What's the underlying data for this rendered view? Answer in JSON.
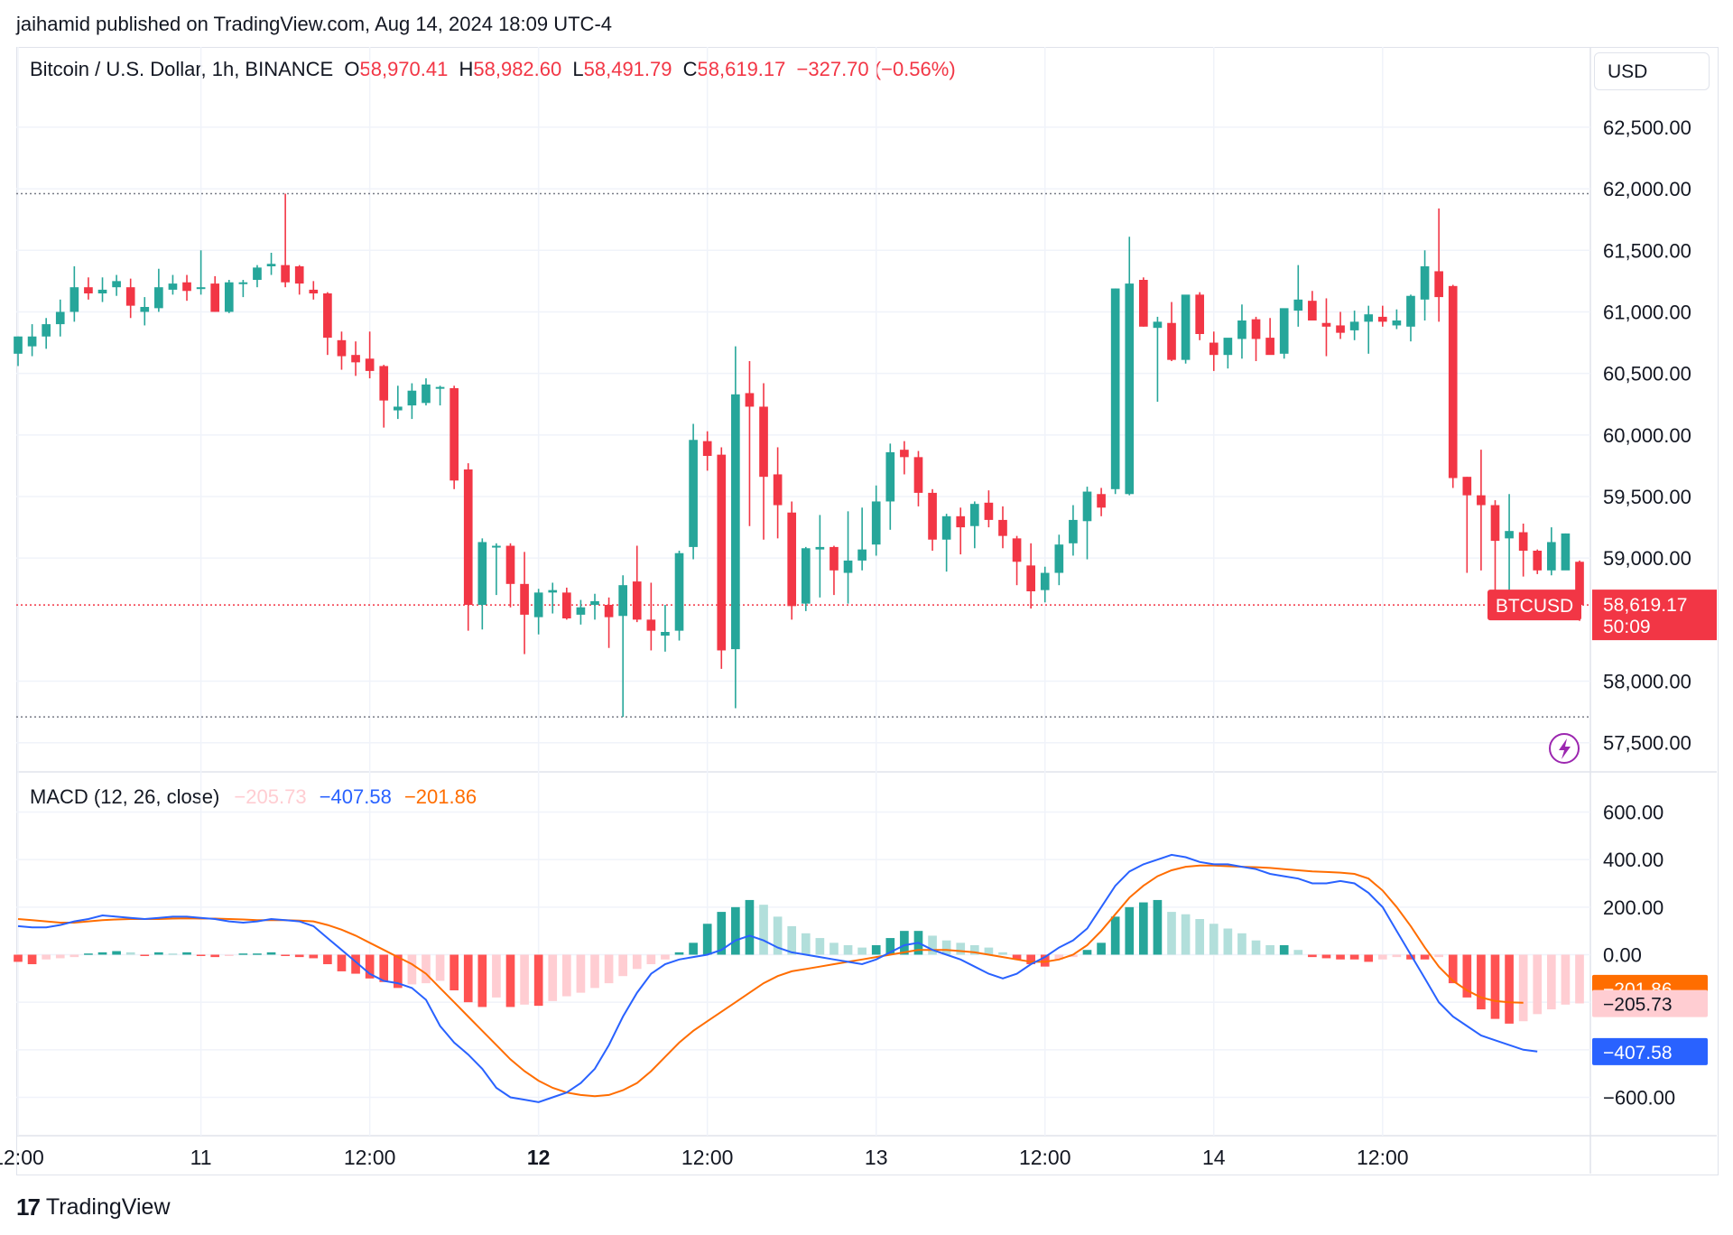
{
  "header": {
    "publisher": "jaihamid published on TradingView.com, Aug 14, 2024 18:09 UTC-4"
  },
  "legend": {
    "symbol": "Bitcoin / U.S. Dollar, 1h, BINANCE",
    "o_label": "O",
    "o_value": "58,970.41",
    "h_label": "H",
    "h_value": "58,982.60",
    "l_label": "L",
    "l_value": "58,491.79",
    "c_label": "C",
    "c_value": "58,619.17",
    "change": "−327.70 (−0.56%)"
  },
  "currency_button": "USD",
  "price_tag": {
    "symbol": "BTCUSD",
    "price": "58,619.17",
    "countdown": "50:09"
  },
  "macd_legend": {
    "name": "MACD (12, 26, close)",
    "hist": "−205.73",
    "macd": "−407.58",
    "signal": "−201.86"
  },
  "macd_tags": {
    "signal": "−201.86",
    "hist": "−205.73",
    "macd": "−407.58"
  },
  "footer": {
    "brand": "TradingView",
    "logo_glyph": "17"
  },
  "colors": {
    "up": "#26a69a",
    "down": "#f23645",
    "hist_up_strong": "#26a69a",
    "hist_up_weak": "#b2dfdb",
    "hist_down_strong": "#ff5252",
    "hist_down_weak": "#ffcdd2",
    "macd_line": "#2962ff",
    "signal_line": "#ff6d00",
    "price_line": "#f23645",
    "grid": "#f0f3fa"
  },
  "chart_data": [
    {
      "type": "candlestick",
      "title": "Bitcoin / U.S. Dollar, 1h, BINANCE",
      "ylim": [
        57300,
        62800
      ],
      "y_ticks": [
        "62,500.00",
        "62,000.00",
        "61,500.00",
        "61,000.00",
        "60,500.00",
        "60,000.00",
        "59,500.00",
        "59,000.00",
        "58,000.00",
        "57,500.00"
      ],
      "y_tick_values": [
        62500,
        62000,
        61500,
        61000,
        60500,
        60000,
        59500,
        59000,
        58000,
        57500
      ],
      "x_ticks": [
        {
          "label": "12:00",
          "index": 1,
          "bold": false
        },
        {
          "label": "11",
          "index": 13,
          "bold": false
        },
        {
          "label": "12:00",
          "index": 25,
          "bold": false
        },
        {
          "label": "12",
          "index": 37,
          "bold": true
        },
        {
          "label": "12:00",
          "index": 49,
          "bold": false
        },
        {
          "label": "13",
          "index": 61,
          "bold": false
        },
        {
          "label": "12:00",
          "index": 73,
          "bold": false
        },
        {
          "label": "14",
          "index": 85,
          "bold": false
        },
        {
          "label": "12:00",
          "index": 97,
          "bold": false
        }
      ],
      "period_high": 61960,
      "period_low": 57710,
      "last_price": 58619.17,
      "ohlc": [
        [
          60660,
          60800,
          60560,
          60800
        ],
        [
          60720,
          60900,
          60640,
          60800
        ],
        [
          60800,
          60950,
          60700,
          60900
        ],
        [
          60900,
          61100,
          60800,
          61000
        ],
        [
          61000,
          61370,
          60920,
          61200
        ],
        [
          61200,
          61280,
          61100,
          61150
        ],
        [
          61150,
          61280,
          61080,
          61180
        ],
        [
          61200,
          61300,
          61130,
          61250
        ],
        [
          61200,
          61270,
          60950,
          61050
        ],
        [
          61000,
          61120,
          60890,
          61040
        ],
        [
          61030,
          61350,
          61000,
          61200
        ],
        [
          61180,
          61300,
          61140,
          61230
        ],
        [
          61240,
          61300,
          61090,
          61170
        ],
        [
          61190,
          61500,
          61140,
          61200
        ],
        [
          61230,
          61290,
          61000,
          61000
        ],
        [
          61000,
          61260,
          60990,
          61240
        ],
        [
          61230,
          61260,
          61120,
          61240
        ],
        [
          61260,
          61380,
          61200,
          61360
        ],
        [
          61370,
          61480,
          61300,
          61390
        ],
        [
          61380,
          61960,
          61200,
          61240
        ],
        [
          61370,
          61380,
          61140,
          61230
        ],
        [
          61180,
          61250,
          61100,
          61150
        ],
        [
          61150,
          61160,
          60650,
          60790
        ],
        [
          60770,
          60840,
          60530,
          60640
        ],
        [
          60650,
          60760,
          60480,
          60590
        ],
        [
          60620,
          60840,
          60460,
          60520
        ],
        [
          60560,
          60570,
          60060,
          60280
        ],
        [
          60200,
          60400,
          60130,
          60230
        ],
        [
          60240,
          60420,
          60130,
          60360
        ],
        [
          60260,
          60460,
          60240,
          60410
        ],
        [
          60380,
          60400,
          60240,
          60390
        ],
        [
          60380,
          60400,
          59560,
          59630
        ],
        [
          59720,
          59770,
          58410,
          58620
        ],
        [
          58620,
          59160,
          58420,
          59130
        ],
        [
          59100,
          59120,
          58700,
          59100
        ],
        [
          59100,
          59120,
          58600,
          58790
        ],
        [
          58790,
          59050,
          58220,
          58540
        ],
        [
          58520,
          58750,
          58380,
          58720
        ],
        [
          58720,
          58800,
          58550,
          58740
        ],
        [
          58720,
          58760,
          58500,
          58510
        ],
        [
          58540,
          58660,
          58460,
          58600
        ],
        [
          58620,
          58710,
          58500,
          58650
        ],
        [
          58620,
          58680,
          58270,
          58520
        ],
        [
          58530,
          58860,
          57710,
          58780
        ],
        [
          58810,
          59100,
          58480,
          58500
        ],
        [
          58500,
          58800,
          58250,
          58410
        ],
        [
          58370,
          58620,
          58240,
          58400
        ],
        [
          58410,
          59060,
          58330,
          59040
        ],
        [
          59090,
          60090,
          58990,
          59960
        ],
        [
          59950,
          60030,
          59710,
          59830
        ],
        [
          59840,
          59900,
          58100,
          58250
        ],
        [
          58260,
          60720,
          57780,
          60330
        ],
        [
          60340,
          60600,
          59260,
          60230
        ],
        [
          60230,
          60420,
          59150,
          59660
        ],
        [
          59680,
          59900,
          59160,
          59430
        ],
        [
          59370,
          59460,
          58500,
          58610
        ],
        [
          58630,
          59090,
          58570,
          59080
        ],
        [
          59070,
          59350,
          58680,
          59090
        ],
        [
          59090,
          59100,
          58700,
          58900
        ],
        [
          58880,
          59380,
          58630,
          58980
        ],
        [
          58980,
          59410,
          58900,
          59070
        ],
        [
          59110,
          59590,
          59020,
          59460
        ],
        [
          59460,
          59930,
          59230,
          59860
        ],
        [
          59880,
          59950,
          59680,
          59820
        ],
        [
          59820,
          59870,
          59420,
          59530
        ],
        [
          59530,
          59560,
          59060,
          59150
        ],
        [
          59150,
          59360,
          58890,
          59340
        ],
        [
          59340,
          59410,
          59030,
          59250
        ],
        [
          59260,
          59460,
          59080,
          59440
        ],
        [
          59450,
          59550,
          59250,
          59310
        ],
        [
          59310,
          59420,
          59080,
          59180
        ],
        [
          59160,
          59180,
          58780,
          58970
        ],
        [
          58940,
          59120,
          58590,
          58730
        ],
        [
          58740,
          58930,
          58640,
          58880
        ],
        [
          58880,
          59190,
          58780,
          59110
        ],
        [
          59120,
          59430,
          59020,
          59310
        ],
        [
          59300,
          59580,
          58990,
          59540
        ],
        [
          59520,
          59570,
          59340,
          59410
        ],
        [
          59560,
          61190,
          59520,
          61190
        ],
        [
          59520,
          61610,
          59510,
          61230
        ],
        [
          61260,
          61280,
          60880,
          60880
        ],
        [
          60870,
          60960,
          60270,
          60920
        ],
        [
          60910,
          61080,
          60600,
          60610
        ],
        [
          60610,
          61120,
          60580,
          61140
        ],
        [
          61140,
          61160,
          60770,
          60820
        ],
        [
          60750,
          60840,
          60520,
          60650
        ],
        [
          60650,
          60760,
          60540,
          60790
        ],
        [
          60780,
          61060,
          60620,
          60930
        ],
        [
          60940,
          60960,
          60600,
          60780
        ],
        [
          60790,
          60950,
          60660,
          60650
        ],
        [
          60660,
          61010,
          60620,
          61030
        ],
        [
          61010,
          61380,
          60880,
          61100
        ],
        [
          61090,
          61170,
          60940,
          60930
        ],
        [
          60910,
          61110,
          60640,
          60880
        ],
        [
          60890,
          61000,
          60780,
          60830
        ],
        [
          60850,
          61010,
          60770,
          60920
        ],
        [
          60920,
          61050,
          60660,
          60980
        ],
        [
          60960,
          61050,
          60880,
          60920
        ],
        [
          60890,
          61020,
          60860,
          60930
        ],
        [
          60880,
          61140,
          60760,
          61130
        ],
        [
          61100,
          61500,
          60930,
          61370
        ],
        [
          61330,
          61840,
          60920,
          61120
        ],
        [
          61210,
          61220,
          59570,
          59650
        ],
        [
          59660,
          59660,
          58880,
          59510
        ],
        [
          59510,
          59880,
          58900,
          59430
        ],
        [
          59430,
          59470,
          58590,
          59140
        ],
        [
          59160,
          59520,
          58680,
          59220
        ],
        [
          59210,
          59280,
          58850,
          59060
        ],
        [
          59060,
          59070,
          58870,
          58900
        ],
        [
          58900,
          59250,
          58860,
          59130
        ],
        [
          58900,
          59200,
          58930,
          59200
        ],
        [
          58970,
          58980,
          58490,
          58620
        ]
      ]
    },
    {
      "type": "macd",
      "title": "MACD (12, 26, close)",
      "ylim": [
        -750,
        750
      ],
      "y_ticks": [
        "600.00",
        "400.00",
        "200.00",
        "0.00",
        "−600.00"
      ],
      "y_tick_values": [
        600,
        400,
        200,
        0,
        -600
      ],
      "series": [
        {
          "name": "histogram",
          "values": [
            -30,
            -40,
            -20,
            -15,
            -10,
            5,
            10,
            15,
            10,
            -5,
            10,
            5,
            10,
            -5,
            -10,
            -5,
            5,
            5,
            10,
            -5,
            -10,
            -15,
            -40,
            -70,
            -80,
            -100,
            -115,
            -140,
            -125,
            -120,
            -110,
            -150,
            -200,
            -220,
            -180,
            -220,
            -210,
            -215,
            -195,
            -175,
            -160,
            -140,
            -120,
            -90,
            -60,
            -40,
            -20,
            10,
            50,
            130,
            180,
            200,
            230,
            210,
            160,
            120,
            90,
            70,
            50,
            40,
            30,
            40,
            70,
            100,
            100,
            80,
            60,
            50,
            40,
            30,
            10,
            -20,
            -40,
            -50,
            -20,
            -10,
            20,
            50,
            160,
            200,
            220,
            230,
            180,
            170,
            150,
            130,
            110,
            90,
            60,
            40,
            40,
            20,
            -10,
            -15,
            -20,
            -20,
            -30,
            -20,
            -10,
            -20,
            -20,
            -10,
            -120,
            -180,
            -230,
            -270,
            -290,
            -280,
            -250,
            -230,
            -210,
            -205
          ]
        },
        {
          "name": "MACD",
          "values": [
            120,
            115,
            115,
            125,
            140,
            150,
            165,
            160,
            155,
            150,
            155,
            160,
            160,
            155,
            150,
            140,
            135,
            140,
            150,
            145,
            140,
            120,
            70,
            20,
            -30,
            -80,
            -110,
            -120,
            -140,
            -190,
            -300,
            -370,
            -420,
            -480,
            -560,
            -600,
            -610,
            -620,
            -600,
            -580,
            -540,
            -480,
            -380,
            -260,
            -160,
            -80,
            -40,
            -20,
            -10,
            0,
            20,
            60,
            80,
            60,
            30,
            10,
            0,
            -10,
            -20,
            -30,
            -40,
            -20,
            10,
            40,
            50,
            20,
            0,
            -20,
            -50,
            -80,
            -100,
            -80,
            -40,
            -10,
            30,
            60,
            110,
            200,
            290,
            350,
            380,
            400,
            420,
            410,
            390,
            380,
            380,
            370,
            360,
            340,
            330,
            320,
            300,
            300,
            310,
            300,
            260,
            200,
            100,
            0,
            -100,
            -200,
            -260,
            -300,
            -340,
            -360,
            -380,
            -400,
            -407.58
          ]
        },
        {
          "name": "signal",
          "values": [
            150,
            145,
            140,
            135,
            135,
            140,
            145,
            148,
            150,
            150,
            150,
            152,
            153,
            152,
            152,
            150,
            148,
            145,
            145,
            145,
            143,
            140,
            125,
            105,
            80,
            50,
            20,
            -10,
            -40,
            -80,
            -140,
            -200,
            -260,
            -320,
            -380,
            -440,
            -490,
            -530,
            -560,
            -580,
            -590,
            -595,
            -590,
            -570,
            -540,
            -490,
            -430,
            -370,
            -320,
            -280,
            -240,
            -200,
            -160,
            -120,
            -90,
            -70,
            -60,
            -50,
            -40,
            -30,
            -20,
            -10,
            0,
            10,
            20,
            20,
            20,
            15,
            10,
            0,
            -10,
            -20,
            -30,
            -30,
            -20,
            0,
            40,
            100,
            170,
            240,
            290,
            330,
            355,
            370,
            375,
            375,
            372,
            370,
            368,
            365,
            360,
            355,
            350,
            348,
            345,
            340,
            320,
            270,
            200,
            120,
            30,
            -50,
            -110,
            -150,
            -180,
            -195,
            -200,
            -201.86
          ]
        }
      ]
    }
  ]
}
